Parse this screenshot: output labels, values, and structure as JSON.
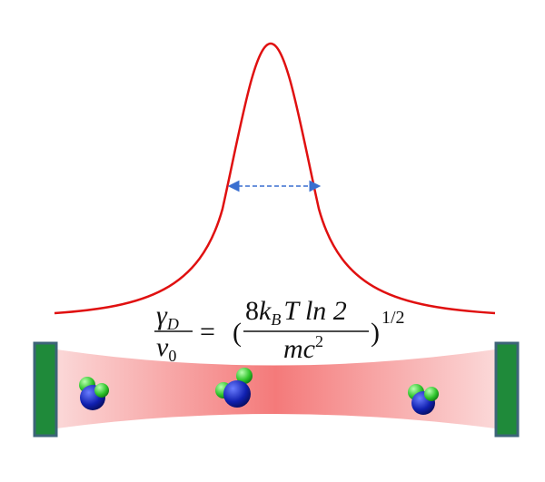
{
  "formula": {
    "lhs_numerator": {
      "symbol": "γ",
      "subscript": "D"
    },
    "lhs_denominator": {
      "symbol": "ν",
      "subscript": "0"
    },
    "equals": "=",
    "open_paren": "(",
    "rhs_numerator": {
      "coefficient": "8",
      "k": "k",
      "subscript": "B",
      "rest": "T ln 2"
    },
    "rhs_denominator": {
      "base": "mc",
      "superscript": "2"
    },
    "close_paren": ")",
    "exponent": "1/2"
  }
}
